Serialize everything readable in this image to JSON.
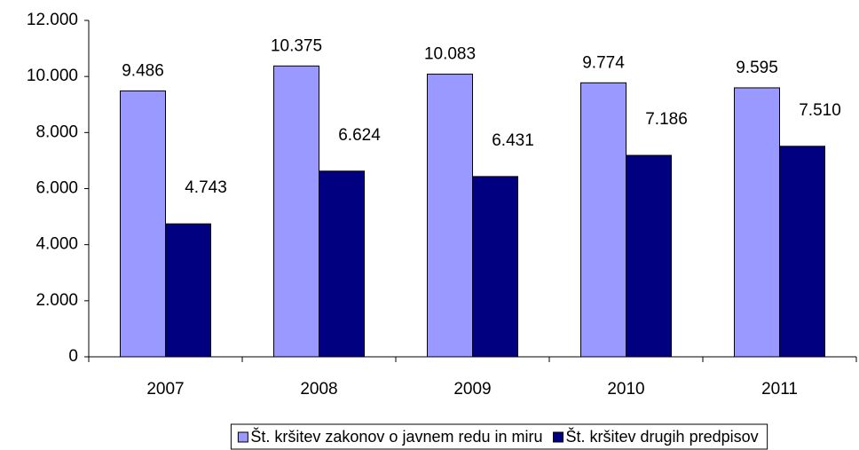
{
  "chart_data": {
    "type": "bar",
    "categories": [
      "2007",
      "2008",
      "2009",
      "2010",
      "2011"
    ],
    "series": [
      {
        "name": "Št. kršitev zakonov o javnem redu in miru",
        "color": "#9999ff",
        "values": [
          9486,
          10375,
          10083,
          9774,
          9595
        ],
        "value_labels": [
          "9.486",
          "10.375",
          "10.083",
          "9.774",
          "9.595"
        ]
      },
      {
        "name": "Št. kršitev drugih predpisov",
        "color": "#000080",
        "values": [
          4743,
          6624,
          6431,
          7186,
          7510
        ],
        "value_labels": [
          "4.743",
          "6.624",
          "6.431",
          "7.186",
          "7.510"
        ]
      }
    ],
    "ylim": [
      0,
      12000
    ],
    "yticks": [
      0,
      {
        "value": 2000,
        "label": "2.000"
      },
      {
        "value": 4000,
        "label": "4.000"
      },
      {
        "value": 6000,
        "label": "6.000"
      },
      {
        "value": 8000,
        "label": "8.000"
      },
      {
        "value": 10000,
        "label": "10.000"
      },
      {
        "value": 12000,
        "label": "12.000"
      }
    ],
    "grid": false,
    "legend": "bottom"
  }
}
